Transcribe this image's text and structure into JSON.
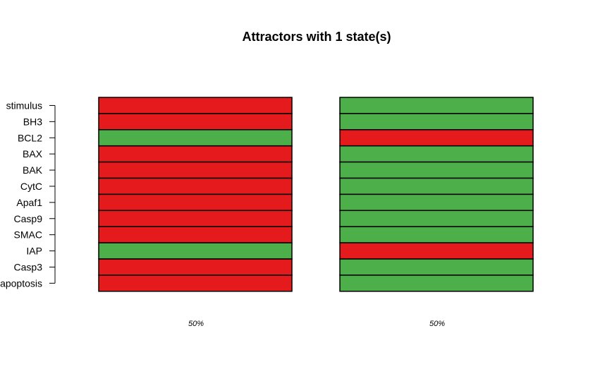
{
  "chart_data": {
    "type": "heatmap",
    "title": "Attractors with 1 state(s)",
    "genes": [
      "stimulus",
      "BH3",
      "BCL2",
      "BAX",
      "BAK",
      "CytC",
      "Apaf1",
      "Casp9",
      "SMAC",
      "IAP",
      "Casp3",
      "apoptosis"
    ],
    "attractors": [
      {
        "values": [
          1,
          1,
          0,
          1,
          1,
          1,
          1,
          1,
          1,
          0,
          1,
          1
        ],
        "percentage_label": "50%"
      },
      {
        "values": [
          0,
          0,
          1,
          0,
          0,
          0,
          0,
          0,
          0,
          1,
          0,
          0
        ],
        "percentage_label": "50%"
      }
    ],
    "colors": {
      "active": "#e41a1c",
      "inactive": "#4daf4a",
      "border": "#000000"
    }
  }
}
